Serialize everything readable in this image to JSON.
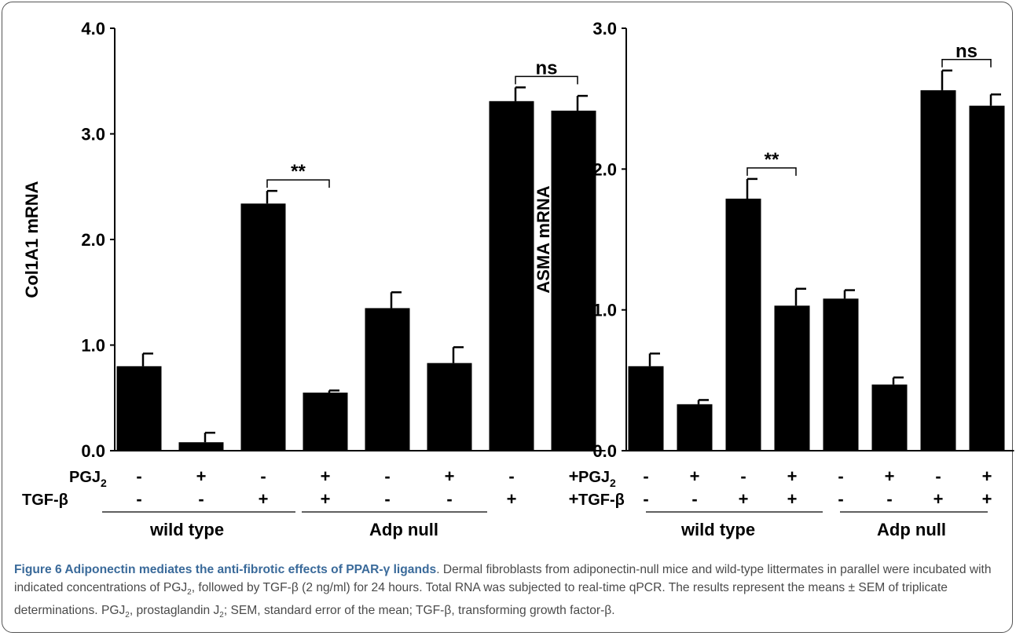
{
  "chart_data": [
    {
      "type": "bar",
      "ylabel": "Col1A1 mRNA",
      "ylim": [
        0,
        4.0
      ],
      "yticks": [
        "0.0",
        "1.0",
        "2.0",
        "3.0",
        "4.0"
      ],
      "values": [
        0.8,
        0.08,
        2.34,
        0.55,
        1.35,
        0.83,
        3.31,
        3.22
      ],
      "errors": [
        0.12,
        0.09,
        0.12,
        0.02,
        0.15,
        0.15,
        0.13,
        0.14
      ],
      "annotations": [
        {
          "text": "**",
          "bars": [
            2,
            3
          ]
        },
        {
          "text": "ns",
          "bars": [
            6,
            7
          ]
        }
      ]
    },
    {
      "type": "bar",
      "ylabel": "ASMA mRNA",
      "ylim": [
        0,
        3.0
      ],
      "yticks": [
        "0.0",
        "1.0",
        "2.0",
        "3.0"
      ],
      "values": [
        0.6,
        0.33,
        1.79,
        1.03,
        1.08,
        0.47,
        2.56,
        2.45
      ],
      "errors": [
        0.09,
        0.03,
        0.14,
        0.12,
        0.06,
        0.05,
        0.14,
        0.08
      ],
      "annotations": [
        {
          "text": "**",
          "bars": [
            2,
            3
          ]
        },
        {
          "text": "ns",
          "bars": [
            6,
            7
          ]
        }
      ]
    }
  ],
  "conditions": {
    "pgj2_label": "PGJ",
    "pgj2_sub": "2",
    "tgf_label": "TGF-β",
    "pgj2": [
      "-",
      "+",
      "-",
      "+",
      "-",
      "+",
      "-",
      "+"
    ],
    "tgf": [
      "-",
      "-",
      "+",
      "+",
      "-",
      "-",
      "+",
      "+"
    ],
    "groups": [
      "wild type",
      "Adp null"
    ]
  },
  "caption": {
    "title": "Figure 6 Adiponectin mediates the anti-fibrotic effects of PPAR-γ ligands",
    "t1": ". Dermal fibroblasts from adiponectin-null mice and wild-type littermates in parallel were incubated with indicated concentrations of PGJ",
    "s1": "2",
    "t2": ", followed by TGF-β (2 ng/ml) for 24 hours. Total RNA was subjected to real-time qPCR. The results represent the means ± SEM of triplicate determinations. PGJ",
    "s2": "2",
    "t3": ", prostaglandin J",
    "s3": "2",
    "t4": "; SEM, standard error of the mean; TGF-β, transforming growth factor-β."
  }
}
